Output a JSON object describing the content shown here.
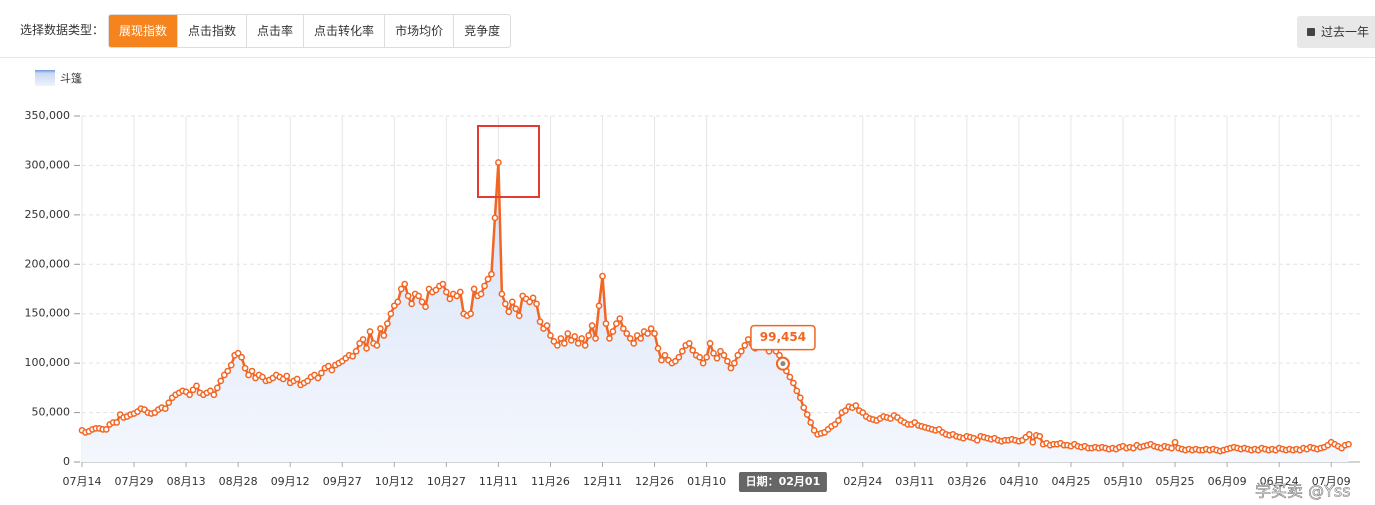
{
  "filter": {
    "label": "选择数据类型：",
    "tabs": [
      "展现指数",
      "点击指数",
      "点击率",
      "点击转化率",
      "市场均价",
      "竞争度"
    ],
    "active": 0
  },
  "period_button": "过去一年",
  "watermark": "学买卖 @Yss",
  "chart_data": {
    "type": "line",
    "categories": [
      "07月14",
      null,
      null,
      null,
      null,
      null,
      null,
      null,
      null,
      null,
      null,
      null,
      null,
      null,
      null,
      "07月29",
      null,
      null,
      null,
      null,
      null,
      null,
      null,
      null,
      null,
      null,
      null,
      null,
      null,
      null,
      "08月13",
      null,
      null,
      null,
      null,
      null,
      null,
      null,
      null,
      null,
      null,
      null,
      null,
      null,
      null,
      "08月28",
      null,
      null,
      null,
      null,
      null,
      null,
      null,
      null,
      null,
      null,
      null,
      null,
      null,
      null,
      "09月12",
      null,
      null,
      null,
      null,
      null,
      null,
      null,
      null,
      null,
      null,
      null,
      null,
      null,
      null,
      "09月27",
      null,
      null,
      null,
      null,
      null,
      null,
      null,
      null,
      null,
      null,
      null,
      null,
      null,
      null,
      "10月12",
      null,
      null,
      null,
      null,
      null,
      null,
      null,
      null,
      null,
      null,
      null,
      null,
      null,
      null,
      "10月27",
      null,
      null,
      null,
      null,
      null,
      null,
      null,
      null,
      null,
      null,
      null,
      null,
      null,
      null,
      "11月11",
      null,
      null,
      null,
      null,
      null,
      null,
      null,
      null,
      null,
      null,
      null,
      null,
      null,
      null,
      "11月26",
      null,
      null,
      null,
      null,
      null,
      null,
      null,
      null,
      null,
      null,
      null,
      null,
      null,
      null,
      "12月11",
      null,
      null,
      null,
      null,
      null,
      null,
      null,
      null,
      null,
      null,
      null,
      null,
      null,
      null,
      "12月26",
      null,
      null,
      null,
      null,
      null,
      null,
      null,
      null,
      null,
      null,
      null,
      null,
      null,
      null,
      "01月10",
      null,
      null,
      null,
      null,
      null,
      null,
      null,
      null,
      null,
      null,
      null,
      null,
      null,
      null,
      null,
      null,
      null,
      null,
      null,
      null,
      null,
      null,
      null,
      null,
      null,
      null,
      null,
      null,
      null,
      null,
      null,
      null,
      null,
      null,
      null,
      null,
      null,
      null,
      null,
      null,
      null,
      null,
      null,
      null,
      "02月24",
      null,
      null,
      null,
      null,
      null,
      null,
      null,
      null,
      null,
      null,
      null,
      null,
      null,
      null,
      "03月11",
      null,
      null,
      null,
      null,
      null,
      null,
      null,
      null,
      null,
      null,
      null,
      null,
      null,
      null,
      "03月26",
      null,
      null,
      null,
      null,
      null,
      null,
      null,
      null,
      null,
      null,
      null,
      null,
      null,
      null,
      "04月10",
      null,
      null,
      null,
      null,
      null,
      null,
      null,
      null,
      null,
      null,
      null,
      null,
      null,
      null,
      "04月25",
      null,
      null,
      null,
      null,
      null,
      null,
      null,
      null,
      null,
      null,
      null,
      null,
      null,
      null,
      "05月10",
      null,
      null,
      null,
      null,
      null,
      null,
      null,
      null,
      null,
      null,
      null,
      null,
      null,
      null,
      "05月25",
      null,
      null,
      null,
      null,
      null,
      null,
      null,
      null,
      null,
      null,
      null,
      null,
      null,
      null,
      "06月09",
      null,
      null,
      null,
      null,
      null,
      null,
      null,
      null,
      null,
      null,
      null,
      null,
      null,
      null,
      "06月24",
      null,
      null,
      null,
      null,
      null,
      null,
      null,
      null,
      null,
      null,
      null,
      null,
      null,
      null,
      "07月09",
      null,
      null,
      null,
      null,
      null
    ],
    "series": [
      {
        "name": "斗篷",
        "color": "#f26522",
        "values": [
          32000,
          30000,
          31000,
          33000,
          34000,
          34000,
          33000,
          33000,
          38000,
          40000,
          40000,
          48000,
          45000,
          46000,
          48000,
          49000,
          51000,
          54000,
          53000,
          50000,
          49000,
          50000,
          53000,
          55000,
          54000,
          60000,
          65000,
          68000,
          70000,
          72000,
          71000,
          68000,
          73000,
          77000,
          70000,
          68000,
          70000,
          72000,
          68000,
          75000,
          82000,
          88000,
          92000,
          98000,
          108000,
          110000,
          106000,
          95000,
          88000,
          92000,
          85000,
          88000,
          86000,
          82000,
          83000,
          85000,
          88000,
          86000,
          84000,
          87000,
          80000,
          82000,
          84000,
          78000,
          80000,
          82000,
          86000,
          88000,
          85000,
          90000,
          95000,
          97000,
          93000,
          98000,
          100000,
          102000,
          105000,
          108000,
          107000,
          112000,
          120000,
          124000,
          115000,
          132000,
          120000,
          118000,
          135000,
          128000,
          140000,
          150000,
          158000,
          162000,
          175000,
          180000,
          168000,
          160000,
          170000,
          168000,
          162000,
          157000,
          175000,
          172000,
          174000,
          178000,
          180000,
          172000,
          165000,
          170000,
          168000,
          172000,
          150000,
          148000,
          150000,
          175000,
          168000,
          170000,
          178000,
          185000,
          190000,
          247000,
          303000,
          170000,
          160000,
          152000,
          162000,
          155000,
          148000,
          168000,
          165000,
          162000,
          166000,
          160000,
          142000,
          135000,
          138000,
          128000,
          122000,
          118000,
          125000,
          120000,
          130000,
          123000,
          127000,
          120000,
          125000,
          118000,
          128000,
          138000,
          125000,
          158000,
          188000,
          140000,
          125000,
          132000,
          140000,
          145000,
          135000,
          130000,
          125000,
          120000,
          128000,
          125000,
          132000,
          130000,
          135000,
          130000,
          115000,
          103000,
          108000,
          103000,
          100000,
          102000,
          106000,
          112000,
          118000,
          120000,
          113000,
          108000,
          106000,
          100000,
          106000,
          120000,
          110000,
          105000,
          112000,
          108000,
          102000,
          95000,
          100000,
          108000,
          112000,
          118000,
          124000,
          120000,
          115000,
          118000,
          119000,
          116000,
          112000,
          118000,
          112000,
          108000,
          99454,
          92000,
          86000,
          80000,
          72000,
          65000,
          55000,
          48000,
          40000,
          32000,
          28000,
          29000,
          30000,
          33000,
          36000,
          38000,
          42000,
          50000,
          52000,
          56000,
          55000,
          57000,
          52000,
          50000,
          46000,
          44000,
          43000,
          42000,
          44000,
          46000,
          45000,
          44000,
          47000,
          45000,
          42000,
          40000,
          38000,
          38000,
          40000,
          37000,
          36000,
          35000,
          34000,
          33000,
          32000,
          33000,
          30000,
          28000,
          27000,
          28000,
          26000,
          25000,
          24000,
          26000,
          25000,
          24000,
          22000,
          26000,
          25000,
          24000,
          23000,
          24000,
          22000,
          21000,
          22000,
          22000,
          23000,
          22000,
          21000,
          22000,
          25000,
          28000,
          20000,
          27000,
          26000,
          18000,
          19000,
          17000,
          18000,
          18000,
          19000,
          17000,
          17000,
          16000,
          18000,
          16000,
          15000,
          16000,
          14000,
          14000,
          15000,
          14000,
          15000,
          14000,
          13000,
          14000,
          13000,
          15000,
          16000,
          14000,
          15000,
          14000,
          17000,
          15000,
          16000,
          17000,
          18000,
          16000,
          15000,
          14000,
          16000,
          15000,
          14000,
          20000,
          14000,
          13000,
          12000,
          13000,
          12000,
          13000,
          12000,
          12000,
          13000,
          12000,
          13000,
          12000,
          11000,
          12000,
          13000,
          14000,
          15000,
          14000,
          13000,
          14000,
          13000,
          12000,
          13000,
          12000,
          14000,
          13000,
          12000,
          13000,
          12000,
          14000,
          13000,
          12000,
          13000,
          12000,
          13000,
          12000,
          14000,
          13000,
          15000,
          14000,
          13000,
          14000,
          15000,
          17000,
          20000,
          18000,
          16000,
          14000,
          17000,
          18000
        ],
        "value_labels": [
          null,
          null,
          null,
          null,
          null,
          null,
          null,
          null,
          null,
          null,
          null,
          null,
          null,
          null,
          null,
          null,
          null,
          null,
          null,
          null,
          null,
          null,
          null,
          null,
          null,
          null,
          null,
          null,
          null,
          null,
          null,
          null,
          null,
          null,
          null,
          null,
          null,
          null,
          null,
          null,
          null,
          null,
          null,
          null,
          null,
          null,
          null,
          null,
          null,
          null,
          null,
          null,
          null,
          null,
          null,
          null,
          null,
          null,
          null,
          null,
          null,
          null,
          null,
          null,
          null,
          null,
          null,
          null,
          null,
          null,
          null,
          null,
          null,
          null,
          null,
          null,
          null,
          null,
          null,
          null,
          null,
          null,
          null,
          null,
          null,
          null,
          null,
          null,
          null,
          null,
          null,
          null,
          null,
          null,
          null,
          null,
          null,
          null,
          null,
          null,
          null,
          null,
          null,
          null,
          null,
          null,
          null,
          null,
          null,
          null,
          null,
          null,
          null,
          null,
          null,
          null,
          null,
          null,
          null,
          null,
          null,
          null,
          null,
          null,
          null,
          null,
          null,
          null,
          null,
          null,
          null,
          null,
          null,
          null,
          null,
          null,
          null,
          null,
          null,
          null,
          null,
          null,
          null,
          null,
          null,
          null,
          null,
          null,
          null,
          null,
          null,
          null,
          null,
          null,
          null,
          null,
          null,
          null,
          null,
          null,
          null,
          null,
          null,
          null,
          null,
          null,
          null,
          null,
          null,
          null,
          null,
          null,
          null,
          null,
          null,
          null,
          null,
          null,
          null,
          null,
          null,
          null,
          null,
          null,
          null,
          null,
          null,
          null,
          null,
          null,
          null,
          null,
          null,
          null,
          null,
          null,
          null,
          null,
          null,
          null,
          null,
          null,
          "99,454",
          null,
          null,
          null,
          null,
          null,
          null,
          null,
          null,
          null,
          null,
          null,
          null,
          null,
          null,
          null,
          null,
          null,
          null,
          null,
          null,
          null,
          null,
          null,
          null,
          null,
          null,
          null,
          null,
          null,
          null,
          null,
          null,
          null,
          null,
          null,
          null,
          null,
          null,
          null,
          null,
          null,
          null,
          null,
          null,
          null,
          null,
          null,
          null,
          null,
          null,
          null,
          null,
          null,
          null,
          null,
          null,
          null,
          null,
          null,
          null,
          null,
          null,
          null,
          null,
          null,
          null,
          null,
          null,
          null,
          null,
          null,
          null,
          null,
          null,
          null,
          null,
          null,
          null,
          null,
          null,
          null,
          null,
          null,
          null,
          null,
          null,
          null,
          null,
          null,
          null,
          null,
          null,
          null,
          null,
          null,
          null,
          null,
          null,
          null,
          null,
          null,
          null,
          null,
          null,
          null,
          null,
          null,
          null,
          null,
          null,
          null,
          null,
          null,
          null,
          null,
          null,
          null,
          null,
          null,
          null,
          null,
          null,
          null,
          null,
          null,
          null,
          null,
          null,
          null,
          null,
          null,
          null,
          null,
          null,
          null,
          null,
          null,
          null,
          null,
          null,
          null,
          null,
          null,
          null,
          null,
          null,
          null,
          null,
          null,
          null,
          null,
          null,
          null,
          null,
          null,
          null,
          null,
          null,
          null,
          null,
          null,
          null,
          null
        ]
      }
    ],
    "x_tooltip": "日期：02月01",
    "ylim": [
      0,
      350000
    ],
    "yticks": [
      0,
      {
        "value": 50000,
        "label": "50,000"
      },
      {
        "value": 100000,
        "label": "100,000"
      },
      {
        "value": 150000,
        "label": "150,000"
      },
      {
        "value": 200000,
        "label": "200,000"
      },
      {
        "value": 250000,
        "label": "250,000"
      },
      {
        "value": 300000,
        "label": "300,000"
      },
      {
        "value": 350000,
        "label": "350,000"
      }
    ],
    "grid": true
  }
}
